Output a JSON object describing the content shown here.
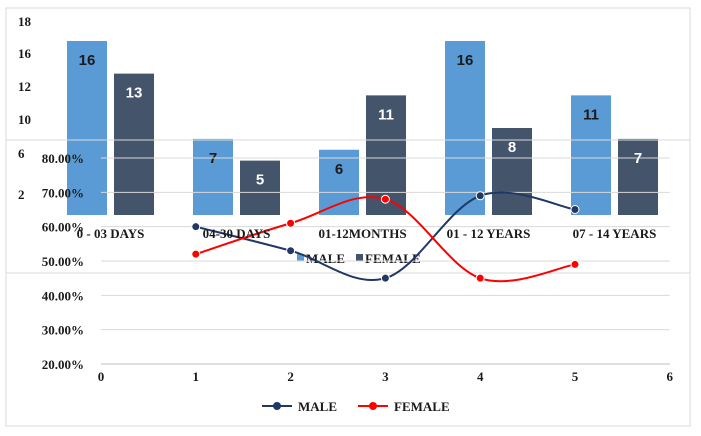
{
  "chart_data": [
    {
      "type": "bar",
      "categories": [
        "0 - 03 DAYS",
        "04-30 DAYS",
        "01-12MONTHS",
        "01 - 12 YEARS",
        "07 - 14 YEARS"
      ],
      "series": [
        {
          "name": "MALE",
          "values": [
            16,
            7,
            6,
            16,
            11
          ],
          "color": "#5b9bd5"
        },
        {
          "name": "FEMALE",
          "values": [
            13,
            5,
            11,
            8,
            7
          ],
          "color": "#44546a"
        }
      ],
      "y_ticks": [
        "18",
        "16",
        "12",
        "10",
        "6",
        "2"
      ],
      "ylim": [
        0,
        18
      ],
      "legend": "bottom"
    },
    {
      "type": "line",
      "x": [
        1,
        2,
        3,
        4,
        5
      ],
      "series": [
        {
          "name": "MALE",
          "values": [
            0.6,
            0.53,
            0.45,
            0.69,
            0.65
          ],
          "color": "#1f3864"
        },
        {
          "name": "FEMALE",
          "values": [
            0.52,
            0.61,
            0.68,
            0.45,
            0.49
          ],
          "color": "#ff0000"
        }
      ],
      "x_ticks": [
        "0",
        "1",
        "2",
        "3",
        "4",
        "5",
        "6"
      ],
      "xlim": [
        0,
        6
      ],
      "y_ticks": [
        "80.00%",
        "70.00%",
        "60.00%",
        "50.00%",
        "40.00%",
        "30.00%",
        "20.00%"
      ],
      "ylim": [
        0.2,
        0.8
      ],
      "grid": true,
      "smooth": true,
      "legend": "bottom"
    }
  ]
}
